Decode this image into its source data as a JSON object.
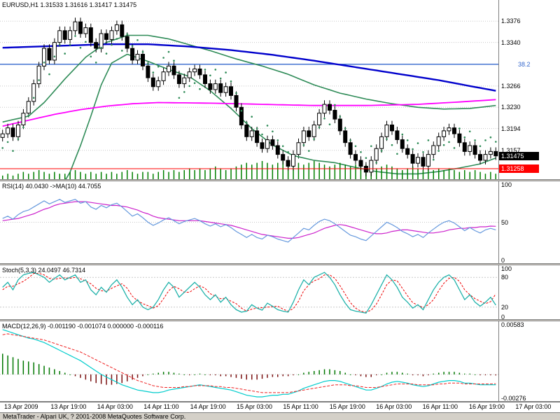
{
  "window": {
    "status_text": "MetaTrader - Alpari UK, ? 2001-2008 MetaQuotes Software Corp."
  },
  "colors": {
    "bull": "#ffffff",
    "bear": "#000000",
    "outline": "#000000",
    "band": "#2e8b57",
    "ma_slow": "#0000cc",
    "ma_mid": "#ff00ff",
    "fib": "#3366cc",
    "sar": "#2e8b57",
    "volume": "#008000",
    "bid": "#ff0000",
    "grid": "#c8c8c8",
    "axis_sep": "#808080",
    "text": "#000000",
    "rsi_main": "#6699dd",
    "rsi_ma": "#cc22cc",
    "stoch_k": "#20b2aa",
    "stoch_d": "#ee0000",
    "macd_main": "#00cccc",
    "macd_signal": "#ee2222",
    "hist_pos": "#007700",
    "hist_neg": "#7a1010"
  },
  "chart_data": {
    "type": "candlestick",
    "symbol": "EURUSD",
    "timeframe": "H1",
    "x_labels": [
      "13 Apr 2009",
      "13 Apr 19:00",
      "14 Apr 03:00",
      "14 Apr 11:00",
      "14 Apr 19:00",
      "15 Apr 03:00",
      "15 Apr 11:00",
      "15 Apr 19:00",
      "16 Apr 03:00",
      "16 Apr 11:00",
      "16 Apr 19:00",
      "17 Apr 03:00"
    ],
    "main": {
      "title": "EURUSD,H1 1.31533 1.31616 1.31417 1.31475",
      "ohlc": {
        "open": 1.31533,
        "high": 1.31616,
        "low": 1.31417,
        "close": 1.31475
      },
      "ylim": [
        1.3108,
        1.3412
      ],
      "axis_ticks": [
        "1.3376",
        "1.3340",
        "1.3266",
        "1.3230",
        "1.3194",
        "1.3157"
      ],
      "axis_tick_values": [
        1.3376,
        1.334,
        1.3266,
        1.323,
        1.3194,
        1.3157
      ],
      "fib_level": {
        "label": "38.2",
        "value": 1.3303
      },
      "last_price": {
        "label": "1.31475",
        "value": 1.31475
      },
      "bid_price": {
        "label": "1.31258",
        "value": 1.31258
      },
      "bar_halfrange": 0.0007,
      "closes": [
        1.3185,
        1.3195,
        1.318,
        1.32,
        1.322,
        1.324,
        1.327,
        1.33,
        1.333,
        1.331,
        1.334,
        1.336,
        1.3345,
        1.336,
        1.3375,
        1.3355,
        1.3365,
        1.334,
        1.333,
        1.3355,
        1.3345,
        1.336,
        1.337,
        1.335,
        1.333,
        1.331,
        1.332,
        1.33,
        1.328,
        1.3265,
        1.3275,
        1.329,
        1.33,
        1.3285,
        1.327,
        1.328,
        1.329,
        1.3295,
        1.3285,
        1.327,
        1.326,
        1.327,
        1.3255,
        1.3265,
        1.325,
        1.323,
        1.32,
        1.318,
        1.319,
        1.317,
        1.316,
        1.3175,
        1.3165,
        1.315,
        1.314,
        1.313,
        1.315,
        1.317,
        1.319,
        1.318,
        1.32,
        1.322,
        1.3235,
        1.3225,
        1.321,
        1.319,
        1.317,
        1.315,
        1.314,
        1.313,
        1.312,
        1.314,
        1.316,
        1.318,
        1.32,
        1.319,
        1.3175,
        1.316,
        1.315,
        1.3135,
        1.3145,
        1.313,
        1.315,
        1.3165,
        1.318,
        1.319,
        1.3195,
        1.3185,
        1.317,
        1.3155,
        1.3165,
        1.315,
        1.314,
        1.315,
        1.3155,
        1.31475
      ],
      "volumes": [
        2,
        3,
        2,
        3,
        4,
        3,
        4,
        5,
        4,
        3,
        4,
        3,
        3,
        4,
        5,
        4,
        3,
        4,
        3,
        4,
        3,
        4,
        3,
        4,
        5,
        4,
        3,
        4,
        4,
        3,
        4,
        5,
        4,
        5,
        4,
        5,
        6,
        5,
        6,
        5,
        6,
        7,
        6,
        5,
        6,
        7,
        8,
        9,
        8,
        9,
        10,
        9,
        8,
        9,
        10,
        9,
        8,
        9,
        8,
        9,
        10,
        9,
        8,
        7,
        8,
        9,
        8,
        7,
        8,
        7,
        8,
        7,
        6,
        7,
        8,
        7,
        6,
        5,
        6,
        7,
        6,
        5,
        6,
        5,
        6,
        5,
        6,
        5,
        4,
        5,
        4,
        5,
        4,
        3,
        4,
        3
      ],
      "sar_offset": 0.0024,
      "sar_segments": [
        [
          0,
          23,
          -1
        ],
        [
          24,
          33,
          1
        ],
        [
          34,
          38,
          -1
        ],
        [
          39,
          55,
          1
        ],
        [
          56,
          63,
          -1
        ],
        [
          64,
          71,
          1
        ],
        [
          72,
          76,
          -1
        ],
        [
          77,
          82,
          1
        ],
        [
          83,
          87,
          -1
        ],
        [
          88,
          95,
          1
        ]
      ],
      "band_upper": [
        [
          0,
          1.3205
        ],
        [
          5,
          1.3215
        ],
        [
          8,
          1.3238
        ],
        [
          12,
          1.3278
        ],
        [
          16,
          1.3315
        ],
        [
          20,
          1.334
        ],
        [
          24,
          1.3352
        ],
        [
          28,
          1.3352
        ],
        [
          32,
          1.3346
        ],
        [
          36,
          1.3336
        ],
        [
          40,
          1.3326
        ],
        [
          45,
          1.3312
        ],
        [
          50,
          1.33
        ],
        [
          55,
          1.3286
        ],
        [
          60,
          1.3268
        ],
        [
          65,
          1.3254
        ],
        [
          70,
          1.3244
        ],
        [
          75,
          1.3236
        ],
        [
          80,
          1.323
        ],
        [
          85,
          1.3227
        ],
        [
          90,
          1.3228
        ],
        [
          95,
          1.3233
        ]
      ],
      "band_lower": [
        [
          0,
          1.3105
        ],
        [
          4,
          1.3088
        ],
        [
          8,
          1.3078
        ],
        [
          11,
          1.309
        ],
        [
          13,
          1.312
        ],
        [
          15,
          1.3165
        ],
        [
          17,
          1.3215
        ],
        [
          19,
          1.3268
        ],
        [
          21,
          1.3305
        ],
        [
          24,
          1.332
        ],
        [
          28,
          1.3308
        ],
        [
          32,
          1.3294
        ],
        [
          36,
          1.3282
        ],
        [
          40,
          1.3258
        ],
        [
          44,
          1.3228
        ],
        [
          48,
          1.3194
        ],
        [
          52,
          1.3166
        ],
        [
          56,
          1.3148
        ],
        [
          60,
          1.314
        ],
        [
          64,
          1.3136
        ],
        [
          68,
          1.3128
        ],
        [
          72,
          1.3121
        ],
        [
          76,
          1.3117
        ],
        [
          80,
          1.3117
        ],
        [
          84,
          1.3121
        ],
        [
          88,
          1.3127
        ],
        [
          92,
          1.3134
        ],
        [
          95,
          1.3144
        ]
      ],
      "ma_slow": [
        [
          0,
          1.3331
        ],
        [
          10,
          1.3334
        ],
        [
          20,
          1.3337
        ],
        [
          28,
          1.3337
        ],
        [
          36,
          1.3333
        ],
        [
          44,
          1.3327
        ],
        [
          52,
          1.3319
        ],
        [
          60,
          1.3309
        ],
        [
          68,
          1.3298
        ],
        [
          76,
          1.3287
        ],
        [
          84,
          1.3276
        ],
        [
          90,
          1.3266
        ],
        [
          95,
          1.3258
        ]
      ],
      "ma_mid": [
        [
          0,
          1.3198
        ],
        [
          5,
          1.3208
        ],
        [
          10,
          1.3218
        ],
        [
          15,
          1.3226
        ],
        [
          20,
          1.3232
        ],
        [
          25,
          1.3236
        ],
        [
          30,
          1.3238
        ],
        [
          40,
          1.3237
        ],
        [
          50,
          1.3235
        ],
        [
          60,
          1.3233
        ],
        [
          70,
          1.3233
        ],
        [
          80,
          1.3235
        ],
        [
          88,
          1.3239
        ],
        [
          95,
          1.3243
        ]
      ]
    },
    "rsi": {
      "label": "RSI(14) 40.0430 ->MA(10) 44.7055",
      "ticks": [
        "100",
        "50",
        "0"
      ],
      "tick_values": [
        100,
        50,
        0
      ],
      "ylim": [
        0,
        100
      ],
      "main": [
        55,
        58,
        54,
        60,
        64,
        66,
        70,
        74,
        78,
        74,
        77,
        80,
        76,
        78,
        80,
        75,
        77,
        70,
        67,
        72,
        69,
        73,
        75,
        70,
        64,
        58,
        61,
        56,
        50,
        46,
        49,
        53,
        56,
        52,
        48,
        51,
        53,
        55,
        52,
        48,
        45,
        48,
        44,
        47,
        43,
        38,
        34,
        30,
        34,
        30,
        28,
        33,
        31,
        28,
        26,
        24,
        30,
        36,
        42,
        40,
        46,
        51,
        54,
        52,
        48,
        43,
        38,
        33,
        31,
        28,
        26,
        32,
        38,
        44,
        50,
        47,
        43,
        38,
        35,
        31,
        34,
        30,
        36,
        41,
        46,
        50,
        52,
        49,
        44,
        39,
        43,
        39,
        36,
        40,
        42,
        40.04
      ],
      "ma": [
        52,
        53,
        54,
        55,
        57,
        59,
        61,
        64,
        67,
        69,
        72,
        74,
        75,
        76,
        77,
        77,
        77,
        76,
        75,
        74,
        73,
        72,
        72,
        71,
        70,
        68,
        66,
        63,
        61,
        58,
        56,
        55,
        54,
        53,
        52,
        52,
        52,
        52,
        52,
        51,
        50,
        49,
        48,
        47,
        46,
        44,
        42,
        40,
        38,
        36,
        34,
        33,
        32,
        31,
        30,
        29,
        29,
        30,
        32,
        34,
        36,
        39,
        42,
        44,
        46,
        47,
        46,
        44,
        42,
        40,
        38,
        36,
        35,
        35,
        36,
        38,
        39,
        40,
        40,
        39,
        38,
        37,
        36,
        36,
        37,
        38,
        40,
        41,
        42,
        42,
        43,
        43,
        44,
        44,
        45,
        44.71
      ]
    },
    "stoch": {
      "label": "Stoch(5,3,3) 24.0497 46.7314",
      "ticks": [
        "100",
        "80",
        "20",
        "0"
      ],
      "tick_values": [
        100,
        80,
        20,
        0
      ],
      "levels": [
        80,
        20
      ],
      "ylim": [
        0,
        100
      ],
      "k": [
        60,
        70,
        55,
        75,
        85,
        88,
        90,
        85,
        80,
        70,
        78,
        85,
        75,
        80,
        85,
        70,
        75,
        55,
        45,
        60,
        50,
        65,
        75,
        60,
        40,
        25,
        35,
        20,
        15,
        20,
        35,
        55,
        70,
        60,
        40,
        50,
        60,
        70,
        60,
        45,
        35,
        45,
        30,
        40,
        25,
        15,
        10,
        12,
        25,
        18,
        14,
        28,
        22,
        15,
        12,
        10,
        30,
        55,
        75,
        65,
        80,
        85,
        90,
        80,
        65,
        45,
        28,
        15,
        12,
        10,
        8,
        25,
        45,
        65,
        85,
        75,
        60,
        40,
        30,
        18,
        25,
        15,
        35,
        55,
        70,
        80,
        85,
        75,
        55,
        35,
        45,
        30,
        22,
        30,
        40,
        24.05
      ],
      "d": [
        55,
        62,
        62,
        67,
        72,
        79,
        88,
        88,
        85,
        78,
        76,
        78,
        79,
        78,
        80,
        77,
        73,
        67,
        58,
        53,
        52,
        58,
        63,
        67,
        58,
        42,
        33,
        27,
        23,
        18,
        23,
        37,
        53,
        62,
        57,
        50,
        50,
        57,
        63,
        58,
        47,
        42,
        37,
        38,
        32,
        27,
        18,
        12,
        16,
        18,
        19,
        20,
        21,
        22,
        16,
        12,
        17,
        32,
        53,
        65,
        73,
        77,
        85,
        85,
        78,
        63,
        46,
        29,
        18,
        12,
        10,
        14,
        26,
        45,
        65,
        75,
        73,
        58,
        43,
        29,
        24,
        19,
        25,
        35,
        53,
        68,
        78,
        80,
        72,
        55,
        45,
        37,
        32,
        27,
        31,
        46.73
      ]
    },
    "macd": {
      "label": "MACD(12,26,9) -0.001190 -0.001074 0.000000 -0.000116",
      "ticks": [
        "0.00583",
        "-0.00276"
      ],
      "tick_values": [
        0.00583,
        -0.00276
      ],
      "ylim": [
        -0.00276,
        0.00583
      ],
      "signal": [
        0.0046,
        0.0047,
        0.0046,
        0.0045,
        0.0044,
        0.0043,
        0.0042,
        0.0041,
        0.004,
        0.0038,
        0.0036,
        0.0034,
        0.0032,
        0.003,
        0.0028,
        0.0026,
        0.0023,
        0.002,
        0.0017,
        0.0014,
        0.0011,
        0.0008,
        0.0005,
        0.0002,
        -0.0001,
        -0.0004,
        -0.0007,
        -0.0009,
        -0.0011,
        -0.0013,
        -0.0014,
        -0.0015,
        -0.0015,
        -0.0015,
        -0.0015,
        -0.0014,
        -0.0014,
        -0.0013,
        -0.0013,
        -0.0013,
        -0.0013,
        -0.0014,
        -0.0014,
        -0.0015,
        -0.0015,
        -0.0016,
        -0.0017,
        -0.0018,
        -0.0019,
        -0.002,
        -0.0021,
        -0.0021,
        -0.0021,
        -0.0021,
        -0.0021,
        -0.0021,
        -0.002,
        -0.0019,
        -0.0018,
        -0.0017,
        -0.0016,
        -0.0015,
        -0.0014,
        -0.0013,
        -0.0012,
        -0.0012,
        -0.0012,
        -0.0013,
        -0.0013,
        -0.0014,
        -0.0015,
        -0.0015,
        -0.0015,
        -0.0014,
        -0.0013,
        -0.0012,
        -0.0011,
        -0.0011,
        -0.0011,
        -0.0011,
        -0.0012,
        -0.0012,
        -0.0012,
        -0.0012,
        -0.0011,
        -0.0011,
        -0.001,
        -0.001,
        -0.001,
        -0.0011,
        -0.0011,
        -0.0011,
        -0.0011,
        -0.0011,
        -0.0011,
        -0.001074
      ],
      "main": [
        0.0052,
        0.005,
        0.0048,
        0.0046,
        0.0044,
        0.0042,
        0.0041,
        0.0039,
        0.0037,
        0.0034,
        0.0031,
        0.0028,
        0.0025,
        0.0022,
        0.0019,
        0.0016,
        0.0012,
        0.0008,
        0.0004,
        0.0,
        -0.0003,
        -0.0006,
        -0.0009,
        -0.0012,
        -0.0014,
        -0.0016,
        -0.0018,
        -0.0019,
        -0.002,
        -0.0021,
        -0.0021,
        -0.002,
        -0.0018,
        -0.0017,
        -0.0016,
        -0.0015,
        -0.0014,
        -0.0013,
        -0.0012,
        -0.0013,
        -0.0014,
        -0.0015,
        -0.0016,
        -0.0017,
        -0.0018,
        -0.002,
        -0.0022,
        -0.0024,
        -0.0025,
        -0.0026,
        -0.0026,
        -0.0025,
        -0.0024,
        -0.0024,
        -0.0023,
        -0.0023,
        -0.0021,
        -0.0019,
        -0.0016,
        -0.0014,
        -0.0012,
        -0.001,
        -0.0008,
        -0.0007,
        -0.0007,
        -0.0008,
        -0.001,
        -0.0012,
        -0.0014,
        -0.0016,
        -0.0018,
        -0.0018,
        -0.0016,
        -0.0014,
        -0.0011,
        -0.0009,
        -0.0008,
        -0.0009,
        -0.001,
        -0.0012,
        -0.0013,
        -0.0014,
        -0.0013,
        -0.0011,
        -0.0009,
        -0.0008,
        -0.0007,
        -0.0007,
        -0.0008,
        -0.001,
        -0.001,
        -0.0011,
        -0.0012,
        -0.0012,
        -0.0012,
        -0.00119
      ],
      "hist": [
        0.0024,
        0.0022,
        0.002,
        0.0018,
        0.0016,
        0.0015,
        0.0014,
        0.0012,
        0.001,
        0.0008,
        0.0006,
        0.0004,
        0.0002,
        0.0,
        -0.0002,
        -0.0004,
        -0.0006,
        -0.0008,
        -0.001,
        -0.0011,
        -0.0012,
        -0.0012,
        -0.0011,
        -0.001,
        -0.0008,
        -0.0006,
        -0.0004,
        -0.0002,
        0.0,
        0.0001,
        0.0002,
        0.0003,
        0.0003,
        0.0002,
        0.0001,
        0.0,
        -0.0001,
        0.0,
        0.0001,
        0.0,
        -0.0001,
        -0.0001,
        -0.0002,
        -0.0002,
        -0.0003,
        -0.0004,
        -0.0005,
        -0.0006,
        -0.0006,
        -0.0006,
        -0.0005,
        -0.0004,
        -0.0003,
        -0.0003,
        -0.0002,
        -0.0002,
        -0.0001,
        0.0,
        0.0002,
        0.0003,
        0.0004,
        0.0005,
        0.0006,
        0.0006,
        0.0005,
        0.0004,
        0.0002,
        0.0,
        -0.0001,
        -0.0002,
        -0.0003,
        -0.0003,
        -0.0001,
        0.0,
        0.0002,
        0.0003,
        0.0003,
        0.0002,
        0.0001,
        -0.0001,
        -0.0001,
        -0.0002,
        -0.0001,
        0.0001,
        0.0002,
        0.0003,
        0.0003,
        0.0003,
        0.0002,
        0.0001,
        0.0001,
        0.0,
        -0.0001,
        -0.0001,
        -0.0001,
        -0.000116
      ]
    }
  }
}
